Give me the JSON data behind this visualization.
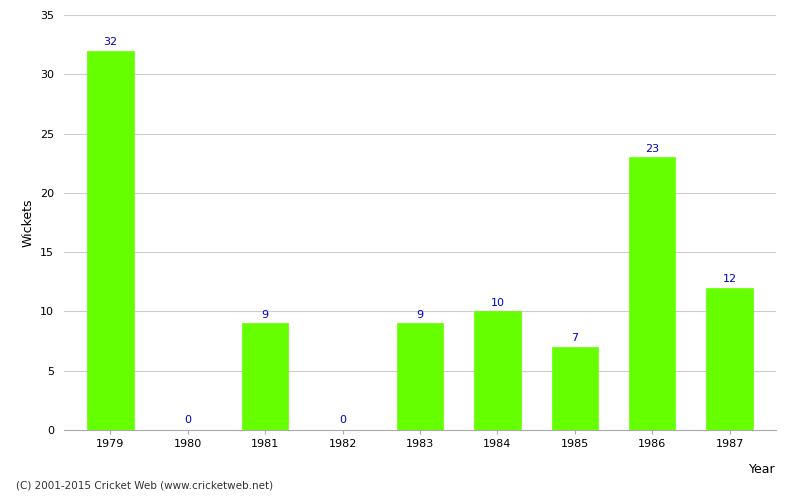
{
  "years": [
    "1979",
    "1980",
    "1981",
    "1982",
    "1983",
    "1984",
    "1985",
    "1986",
    "1987"
  ],
  "values": [
    32,
    0,
    9,
    0,
    9,
    10,
    7,
    23,
    12
  ],
  "bar_color": "#66ff00",
  "label_color": "#0000cc",
  "xlabel": "Year",
  "ylabel": "Wickets",
  "ylim": [
    0,
    35
  ],
  "yticks": [
    0,
    5,
    10,
    15,
    20,
    25,
    30,
    35
  ],
  "background_color": "#ffffff",
  "grid_color": "#cccccc",
  "footer": "(C) 2001-2015 Cricket Web (www.cricketweb.net)",
  "label_fontsize": 8,
  "axis_label_fontsize": 9,
  "tick_fontsize": 8
}
